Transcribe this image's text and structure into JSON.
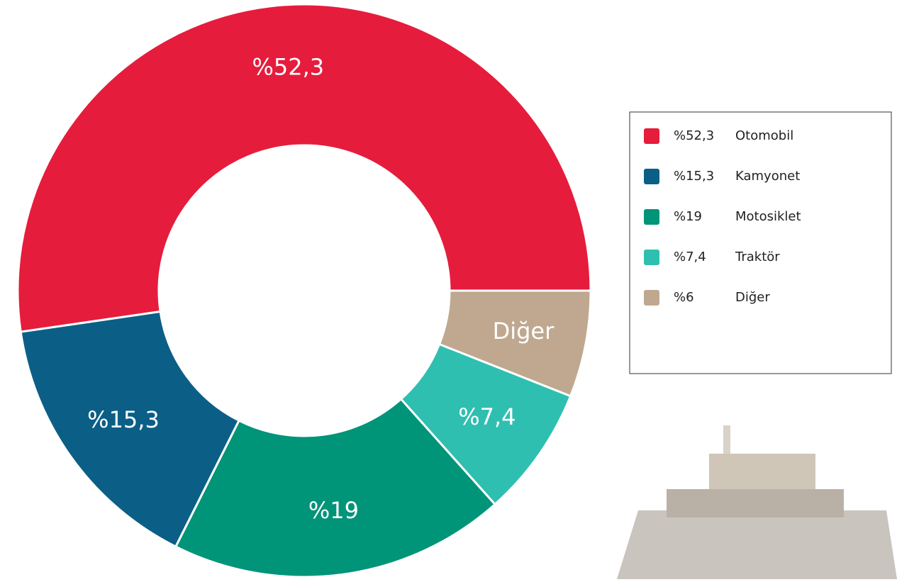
{
  "chart_data": {
    "type": "donut",
    "categories": [
      "Otomobil",
      "Kamyonet",
      "Motosiklet",
      "Traktör",
      "Diğer"
    ],
    "values": [
      52.3,
      15.3,
      19,
      7.4,
      6
    ],
    "value_labels": [
      "%52,3",
      "%15,3",
      "%19",
      "%7,4",
      "%6"
    ],
    "colors": [
      "#e61c3c",
      "#0b5f86",
      "#009479",
      "#2fbfb0",
      "#bfa88f"
    ],
    "legend": "right"
  }
}
